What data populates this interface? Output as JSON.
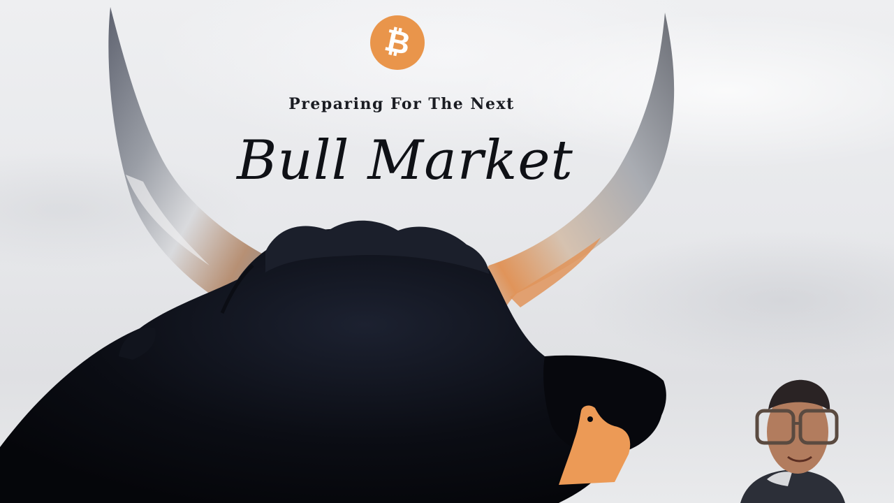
{
  "thumbnail": {
    "coin_icon": "bitcoin-icon",
    "coin_glyph": "₿",
    "coin_color": "#e9954b",
    "subtitle": "Preparing For The Next",
    "title": "Bull Market",
    "text_color": "#0f1116",
    "bull_color": "#0b0d14",
    "accent_color": "#e9954b"
  }
}
